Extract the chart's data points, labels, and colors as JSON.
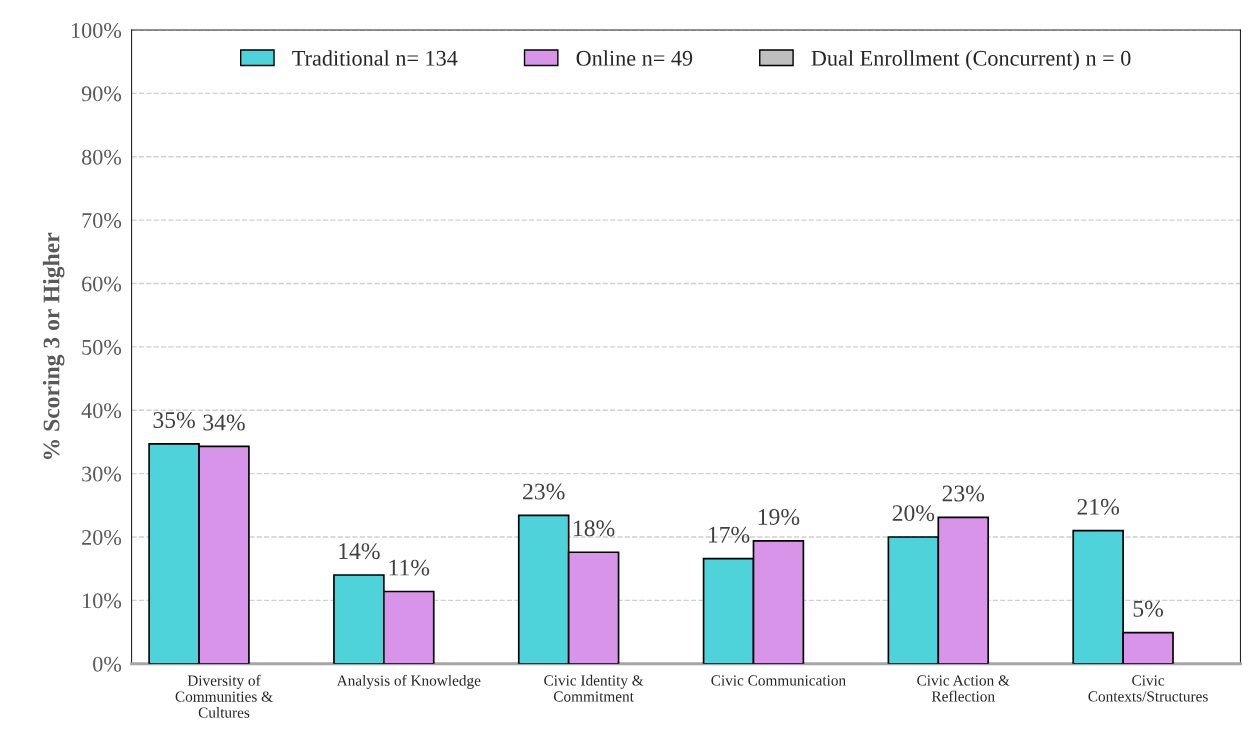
{
  "chart_data": {
    "type": "bar",
    "ylabel": "% Scoring 3 or Higher",
    "categories": [
      "Diversity of\nCommunities &\nCultures",
      "Analysis of Knowledge",
      "Civic Identity &\nCommitment",
      "Civic Communication",
      "Civic Action &\nReflection",
      "Civic\nContexts/Structures"
    ],
    "series": [
      {
        "name": "Traditional n= 134",
        "color": "#4fd3da",
        "values": [
          34.7,
          14.0,
          23.4,
          16.6,
          20.0,
          21.0
        ],
        "value_labels": [
          "35%",
          "14%",
          "23%",
          "17%",
          "20%",
          "21%"
        ]
      },
      {
        "name": "Online n= 49",
        "color": "#d894e8",
        "values": [
          34.3,
          11.4,
          17.6,
          19.4,
          23.1,
          4.9
        ],
        "value_labels": [
          "34%",
          "11%",
          "18%",
          "19%",
          "23%",
          "5%"
        ]
      },
      {
        "name": "Dual Enrollment (Concurrent) n = 0",
        "color": "#bfbfbf",
        "values": [
          null,
          null,
          null,
          null,
          null,
          null
        ]
      }
    ],
    "ylim": [
      0,
      100
    ],
    "yticks": [
      {
        "value": 0,
        "label": "0%"
      },
      {
        "value": 10,
        "label": "10%"
      },
      {
        "value": 20,
        "label": "20%"
      },
      {
        "value": 30,
        "label": "30%"
      },
      {
        "value": 40,
        "label": "40%"
      },
      {
        "value": 50,
        "label": "50%"
      },
      {
        "value": 60,
        "label": "60%"
      },
      {
        "value": 70,
        "label": "70%"
      },
      {
        "value": 80,
        "label": "80%"
      },
      {
        "value": 90,
        "label": "90%"
      },
      {
        "value": 100,
        "label": "100%"
      }
    ],
    "grid": "y",
    "legend": "top"
  }
}
